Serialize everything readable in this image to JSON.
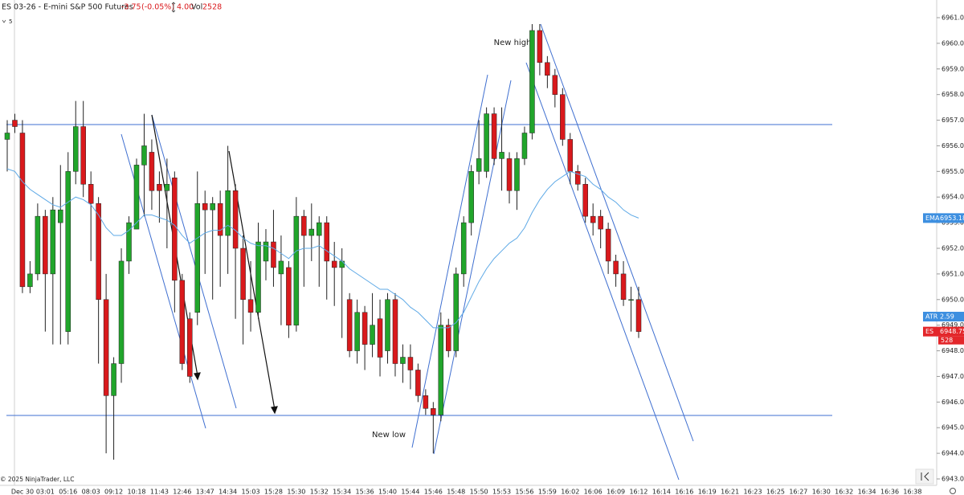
{
  "chart_data": {
    "type": "candlestick",
    "header": {
      "instrument": "ES 03-26 - E-mini S&P 500 Futures",
      "change": "-3.75",
      "change_pct": "(-0.05%)",
      "range": "4.00",
      "vol_label": "Vol",
      "volume": "2528",
      "interval": "5"
    },
    "copyright": "© 2025 NinjaTrader, LLC",
    "annotations": [
      "New high",
      "New low"
    ],
    "up_color": "#21a52b",
    "down_color": "#d9191c",
    "ema_color": "#5ea9e6",
    "line_color": "#3f6fd0",
    "open": [
      6956.25,
      6957,
      6956.5,
      6950.5,
      6951,
      6953.25,
      6951,
      6953,
      6948.75,
      6955,
      6956.75,
      6954.5,
      6953.75,
      6950,
      6946.25,
      6947.5,
      6951.5,
      6952.75,
      6955.25,
      6955.75,
      6954.5,
      6954.25,
      6954.75,
      6950.75,
      6949.25,
      6949.5,
      6953.75,
      6953.5,
      6953.75,
      6952.5,
      6954.25,
      6952,
      6950,
      6949.5,
      6951.5,
      6952.25,
      6951,
      6951.25,
      6949,
      6953.25,
      6952.5,
      6952.5,
      6953,
      6951.5,
      6951.25,
      6950,
      6948,
      6949.5,
      6948.25,
      6949.25,
      6948,
      6950,
      6947.5,
      6947.75,
      6947.25,
      6946.25,
      6945.75,
      6945.5,
      6949,
      6948,
      6951,
      6953,
      6955,
      6955,
      6957.25,
      6955.5,
      6955.5,
      6954.25,
      6955.5,
      6956.5,
      6960.5,
      6959.25,
      6958.75,
      6958,
      6956.25,
      6955,
      6954.5,
      6953.25,
      6953.25,
      6952.75,
      6951.5,
      6951,
      6950,
      6950
    ],
    "high": [
      6957,
      6957.25,
      6957,
      6951.5,
      6953.75,
      6953.5,
      6954,
      6955.25,
      6955.75,
      6957.75,
      6957.75,
      6955,
      6954,
      6951,
      6947.75,
      6952,
      6953.25,
      6955.5,
      6957.25,
      6956.25,
      6955,
      6955.5,
      6955,
      6951,
      6949.5,
      6955,
      6954.25,
      6954,
      6954.25,
      6956,
      6954.5,
      6952.5,
      6951.5,
      6953,
      6952.75,
      6953.5,
      6952.5,
      6951.5,
      6954,
      6953.5,
      6953.75,
      6953.25,
      6953.25,
      6952.25,
      6952,
      6950.25,
      6950,
      6949.75,
      6950.25,
      6950,
      6950.25,
      6950.25,
      6948.25,
      6948.25,
      6947.5,
      6946.5,
      6946,
      6949.5,
      6949.25,
      6951.25,
      6953.25,
      6955.25,
      6957,
      6957.5,
      6957.5,
      6957.5,
      6955.75,
      6955.75,
      6956.75,
      6960.75,
      6960.75,
      6959.5,
      6959,
      6958.25,
      6956.5,
      6955.25,
      6954.75,
      6953.75,
      6953.5,
      6953,
      6951.75,
      6951.5,
      6950.5,
      6950.5
    ],
    "low": [
      6955,
      6956.5,
      6950.25,
      6950.25,
      6950.75,
      6948.75,
      6948.25,
      6948.25,
      6948.25,
      6954.5,
      6954,
      6951.5,
      6947.5,
      6944,
      6943.75,
      6946.75,
      6951,
      6952.75,
      6953.25,
      6953.5,
      6953,
      6952,
      6949.5,
      6947.25,
      6946.75,
      6949,
      6951,
      6950,
      6950.5,
      6951,
      6949.25,
      6948.25,
      6948.75,
      6949.25,
      6950.75,
      6950.5,
      6949,
      6948.5,
      6948.75,
      6950.5,
      6951.5,
      6950.5,
      6950,
      6949.75,
      6948.5,
      6947.75,
      6947.5,
      6947.25,
      6947.75,
      6947,
      6947.5,
      6947,
      6946.75,
      6946.5,
      6946,
      6945.5,
      6944,
      6945.25,
      6947.75,
      6947.75,
      6950.5,
      6952.5,
      6954.5,
      6954.75,
      6955.25,
      6954.25,
      6953.75,
      6953.5,
      6955.25,
      6956.25,
      6958.75,
      6958.25,
      6957.5,
      6956,
      6954.5,
      6954.25,
      6953,
      6952.5,
      6952,
      6951,
      6950.5,
      6949.75,
      6948.75,
      6948.5
    ],
    "close": [
      6956.5,
      6956.75,
      6950.5,
      6951,
      6953.25,
      6951,
      6953.5,
      6953.5,
      6955,
      6956.75,
      6954.5,
      6953.75,
      6950,
      6946.25,
      6947.5,
      6951.5,
      6953,
      6955.25,
      6956,
      6954.25,
      6954.25,
      6954.5,
      6950.75,
      6947.5,
      6947,
      6953.75,
      6953.5,
      6953.75,
      6952.5,
      6954.25,
      6952,
      6950,
      6949.5,
      6952.25,
      6952.25,
      6951.25,
      6951.5,
      6949,
      6953.25,
      6952.5,
      6952.75,
      6953,
      6951.5,
      6951.25,
      6951.5,
      6948,
      6949.5,
      6948.25,
      6949,
      6947.75,
      6950,
      6947.5,
      6947.75,
      6947.25,
      6946.25,
      6945.75,
      6945.5,
      6949,
      6948,
      6951,
      6953,
      6955,
      6955.5,
      6957.25,
      6955.5,
      6955.75,
      6954.25,
      6955.5,
      6956.5,
      6960.5,
      6959.25,
      6958.75,
      6958,
      6956.25,
      6955,
      6954.5,
      6953.25,
      6953,
      6952.75,
      6951.5,
      6951,
      6950,
      6950,
      6948.75
    ],
    "ema": [
      6955.1,
      6955.0,
      6954.6,
      6954.3,
      6954.1,
      6953.9,
      6953.7,
      6953.6,
      6953.8,
      6954.0,
      6953.9,
      6953.7,
      6953.3,
      6952.8,
      6952.5,
      6952.5,
      6952.7,
      6953.0,
      6953.3,
      6953.3,
      6953.2,
      6953.1,
      6952.9,
      6952.5,
      6952.2,
      6952.4,
      6952.6,
      6952.7,
      6952.7,
      6952.9,
      6952.7,
      6952.4,
      6952.2,
      6952.1,
      6952.1,
      6952.0,
      6951.8,
      6951.6,
      6951.9,
      6952.0,
      6952.0,
      6952.1,
      6951.9,
      6951.7,
      6951.5,
      6951.2,
      6951.0,
      6950.8,
      6950.6,
      6950.4,
      6950.4,
      6950.2,
      6950.0,
      6949.7,
      6949.5,
      6949.2,
      6948.9,
      6948.9,
      6948.9,
      6949.1,
      6949.5,
      6950.1,
      6950.7,
      6951.2,
      6951.6,
      6951.9,
      6952.2,
      6952.4,
      6952.8,
      6953.4,
      6953.9,
      6954.3,
      6954.6,
      6954.8,
      6955.0,
      6954.9,
      6954.8,
      6954.5,
      6954.3,
      6954.0,
      6953.8,
      6953.5,
      6953.3,
      6953.18
    ],
    "ema_label": "EMA",
    "atr_label": "ATR",
    "atr": 2.59,
    "instrument_label": "ES",
    "last_volume": 528,
    "x_labels": [
      "Dec 30",
      "03:01",
      "05:16",
      "08:03",
      "09:12",
      "10:18",
      "11:43",
      "12:46",
      "13:47",
      "14:34",
      "15:03",
      "15:28",
      "15:30",
      "15:32",
      "15:34",
      "15:36",
      "15:40",
      "15:44",
      "15:46",
      "15:48",
      "15:50",
      "15:53",
      "15:56",
      "15:59",
      "16:02",
      "16:06",
      "16:09",
      "16:12",
      "16:14",
      "16:16",
      "16:19",
      "16:21",
      "16:23",
      "16:25",
      "16:27",
      "16:30",
      "16:32",
      "16:34",
      "16:36",
      "16:38"
    ],
    "ylim": [
      6943,
      6961
    ],
    "yticks": [
      {
        "value": 6943,
        "label": "6943.00"
      },
      {
        "value": 6944,
        "label": "6944.00"
      },
      {
        "value": 6945,
        "label": "6945.00"
      },
      {
        "value": 6946,
        "label": "6946.00"
      },
      {
        "value": 6947,
        "label": "6947.00"
      },
      {
        "value": 6948,
        "label": "6948.00"
      },
      {
        "value": 6949,
        "label": "6949.00"
      },
      {
        "value": 6950,
        "label": "6950.00"
      },
      {
        "value": 6951,
        "label": "6951.00"
      },
      {
        "value": 6952,
        "label": "6952.00"
      },
      {
        "value": 6953,
        "label": "6953.00"
      },
      {
        "value": 6954,
        "label": "6954.00"
      },
      {
        "value": 6955,
        "label": "6955.00"
      },
      {
        "value": 6956,
        "label": "6956.00"
      },
      {
        "value": 6957,
        "label": "6957.00"
      },
      {
        "value": 6958,
        "label": "6958.00"
      },
      {
        "value": 6959,
        "label": "6959.00"
      },
      {
        "value": 6960,
        "label": "6960.00"
      },
      {
        "value": 6961,
        "label": "6961.00"
      }
    ]
  }
}
